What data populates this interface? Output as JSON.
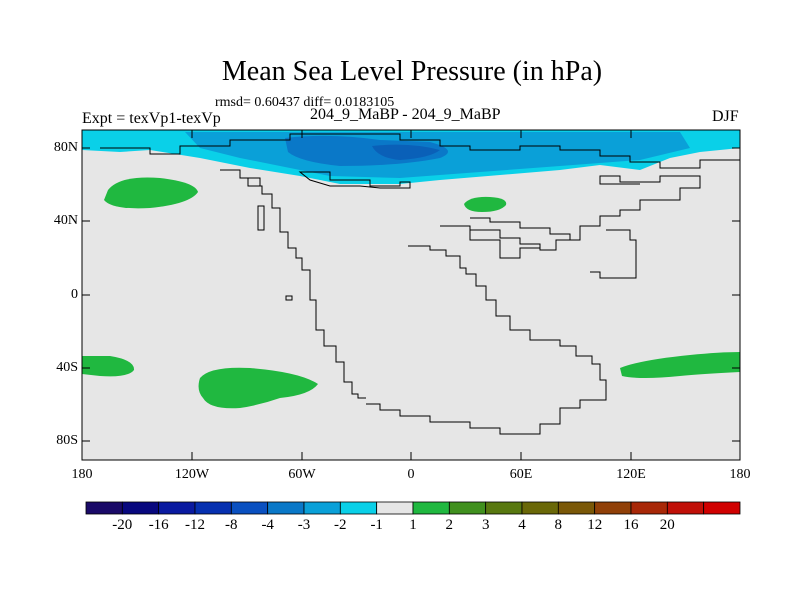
{
  "title": "Mean Sea Level Pressure (in hPa)",
  "stats_text": "rmsd= 0.60437 diff= 0.0183105",
  "experiment_label": "Expt = texVp1-texVp",
  "runs_label": "204_9_MaBP - 204_9_MaBP",
  "season_label": "DJF",
  "y_axis_ticks": [
    "80N",
    "40N",
    "0",
    "40S",
    "80S"
  ],
  "x_axis_ticks": [
    "180",
    "120W",
    "60W",
    "0",
    "60E",
    "120E",
    "180"
  ],
  "colorbar": {
    "colors": [
      "#1a0a68",
      "#08087e",
      "#0a1aa0",
      "#0630b0",
      "#0a50c0",
      "#0a78c8",
      "#0aa0d8",
      "#0ad0e8",
      "#e6e6e6",
      "#20b840",
      "#40901e",
      "#587810",
      "#6a6808",
      "#7a5808",
      "#904008",
      "#a82808",
      "#c01008",
      "#d00000"
    ],
    "labels": [
      "-20",
      "-16",
      "-12",
      "-8",
      "-4",
      "-3",
      "-2",
      "-1",
      "1",
      "2",
      "3",
      "4",
      "8",
      "12",
      "16",
      "20"
    ]
  },
  "map_colors": {
    "background": "#e6e6e6",
    "positive": "#20b840",
    "neg_light": "#0ad0e8",
    "neg_mid": "#0aa0d8",
    "neg_dark": "#0a78c8"
  }
}
